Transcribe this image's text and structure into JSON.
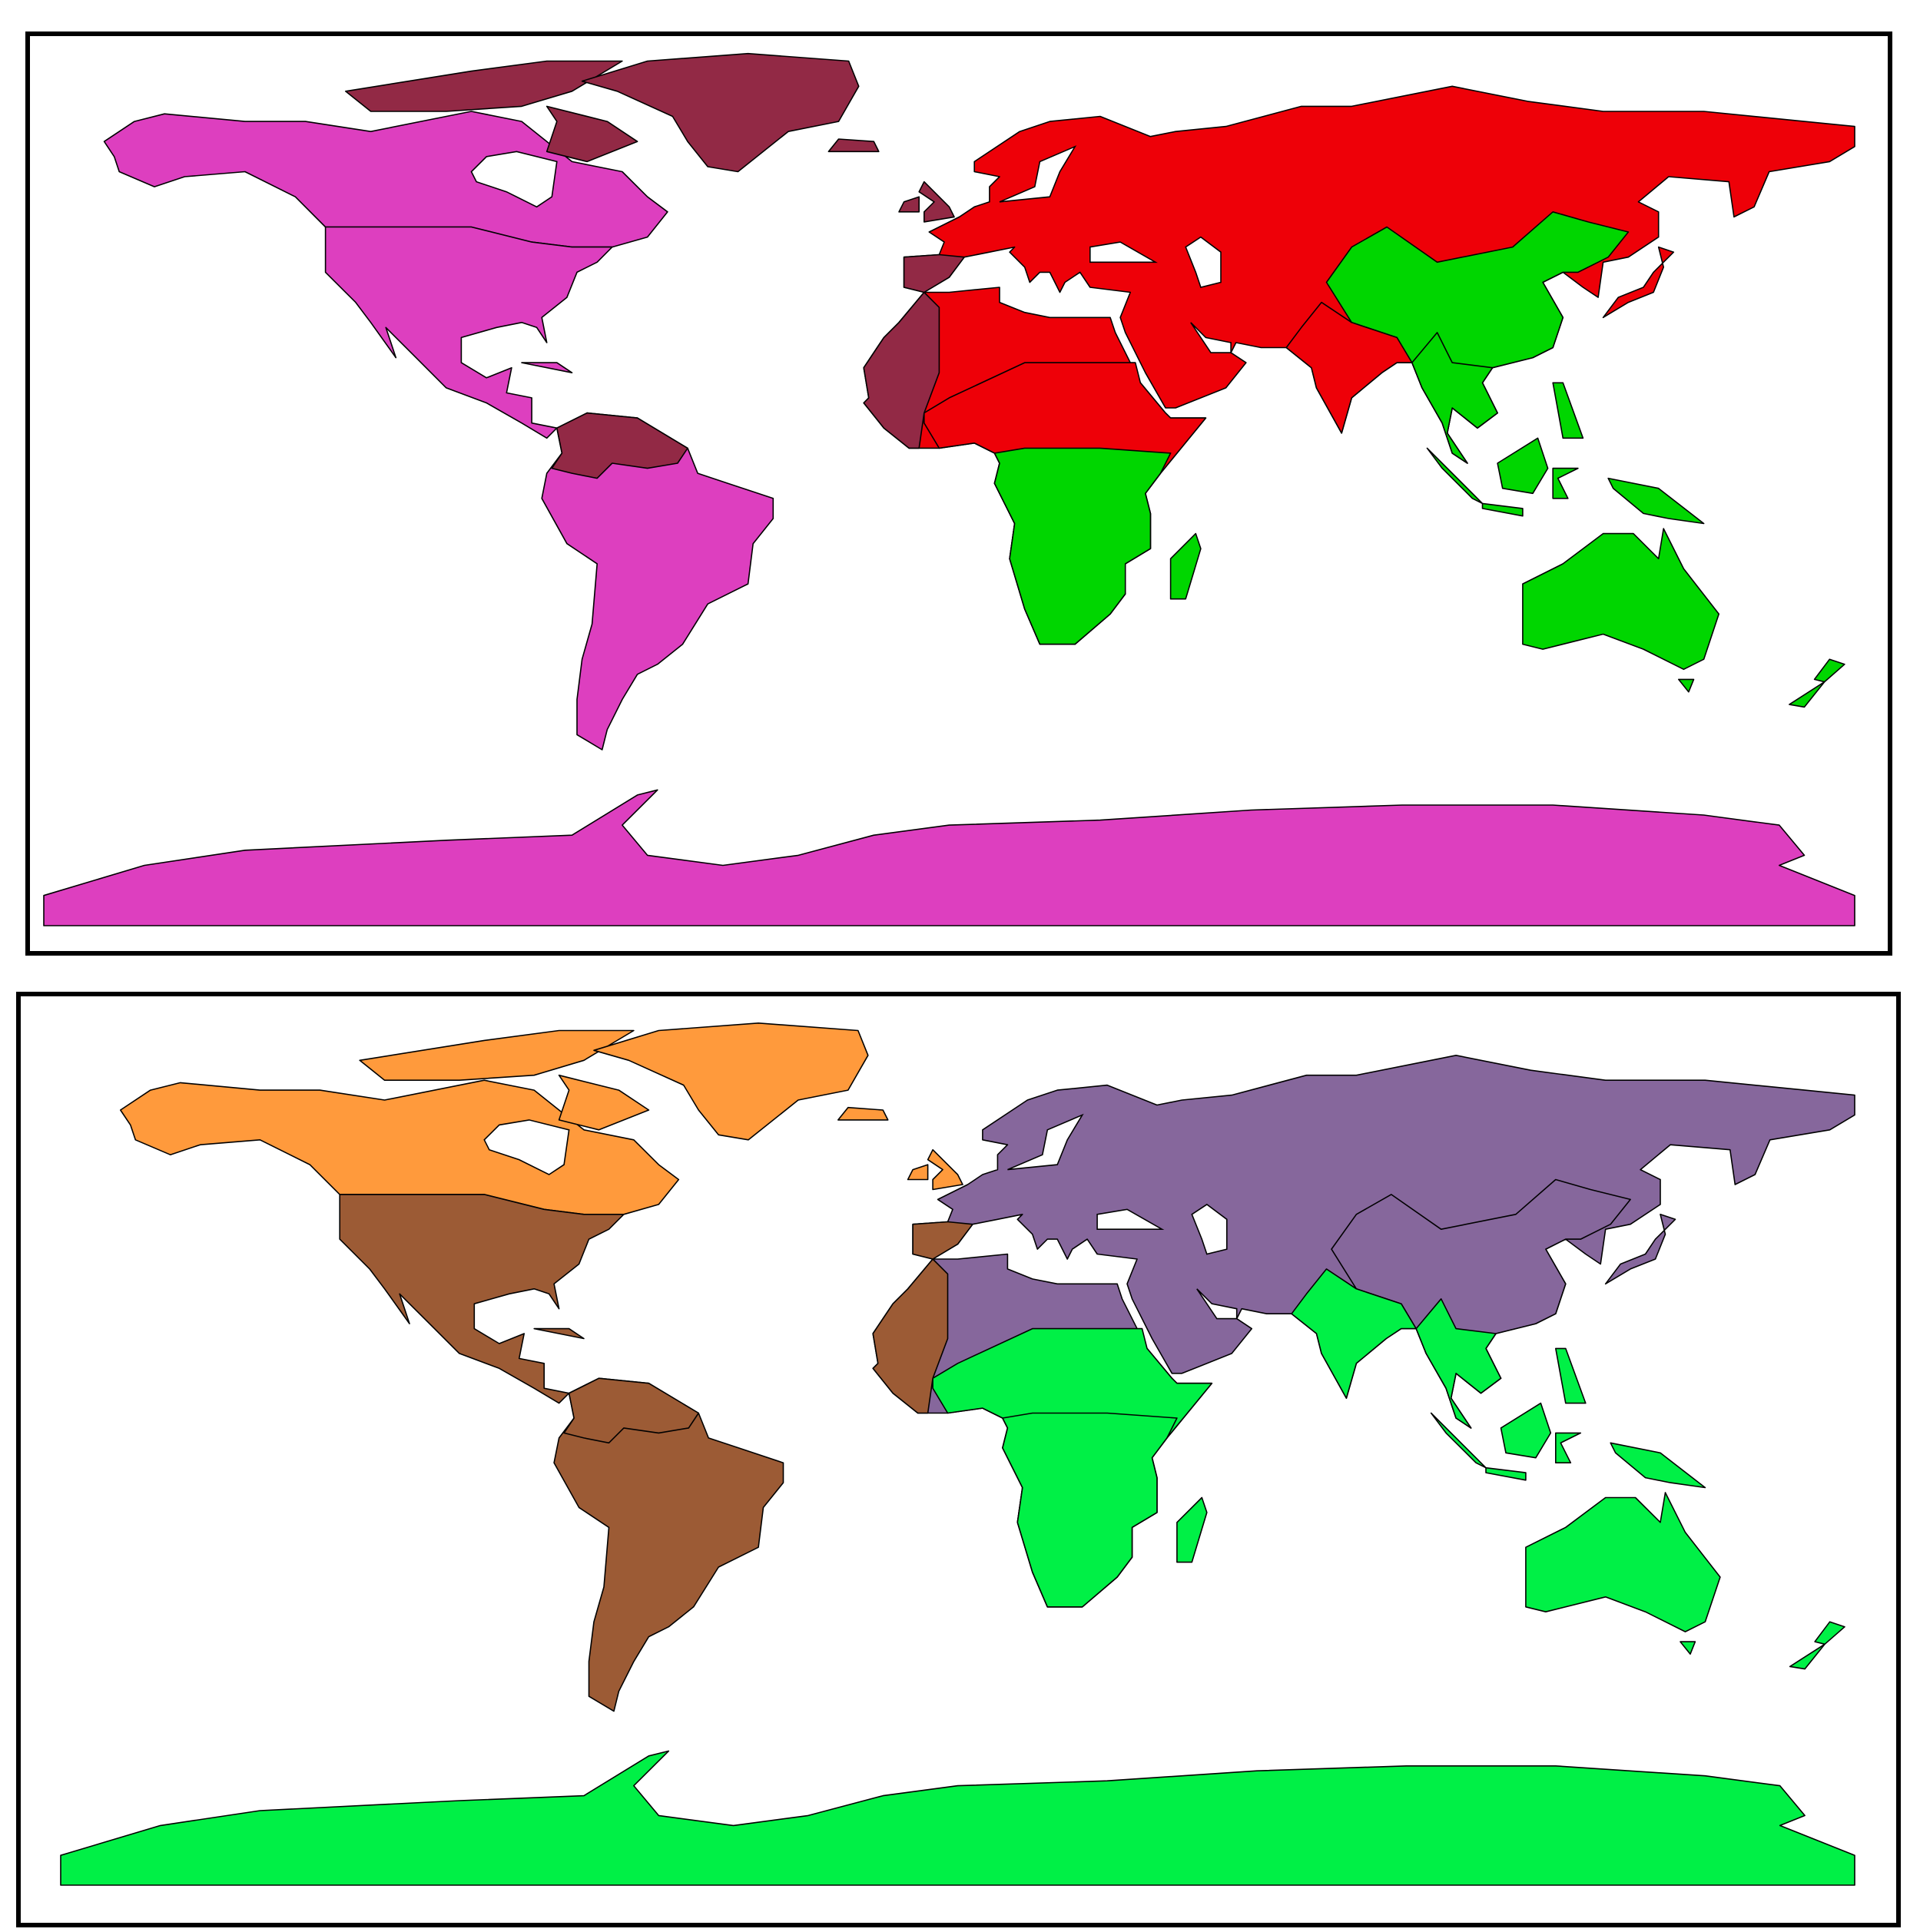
{
  "maps": [
    {
      "colors": [
        "#dd3fbf",
        "#922945",
        "#ee0008",
        "#00d600"
      ]
    },
    {
      "colors": [
        "#ff9a3c",
        "#9c5b35",
        "#86679c",
        "#00f046"
      ]
    }
  ]
}
